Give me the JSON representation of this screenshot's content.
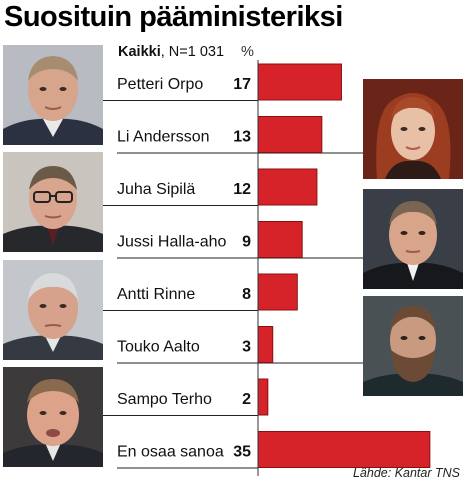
{
  "title": "Suosituin pääministeriksi",
  "subtitle": {
    "bold": "Kaikki",
    "rest": ", N=1 031"
  },
  "unit": "%",
  "source": "Lähde: Kantar TNS",
  "colors": {
    "bar": "#d6232a",
    "bar_edge": "#8a1010",
    "line": "#222222"
  },
  "chart_data": {
    "type": "bar",
    "orientation": "horizontal",
    "title": "Suosituin pääministeriksi",
    "subtitle": "Kaikki, N=1 031",
    "unit": "%",
    "categories": [
      "Petteri Orpo",
      "Li Andersson",
      "Juha Sipilä",
      "Jussi Halla-aho",
      "Antti Rinne",
      "Touko Aalto",
      "Sampo Terho",
      "En osaa sanoa"
    ],
    "values": [
      17,
      13,
      12,
      9,
      8,
      3,
      2,
      35
    ],
    "xlim": [
      0,
      40
    ],
    "grid": false,
    "legend": "none",
    "photo_side": [
      "left",
      "right",
      "left",
      "right",
      "left",
      "right",
      "left",
      "none"
    ]
  }
}
